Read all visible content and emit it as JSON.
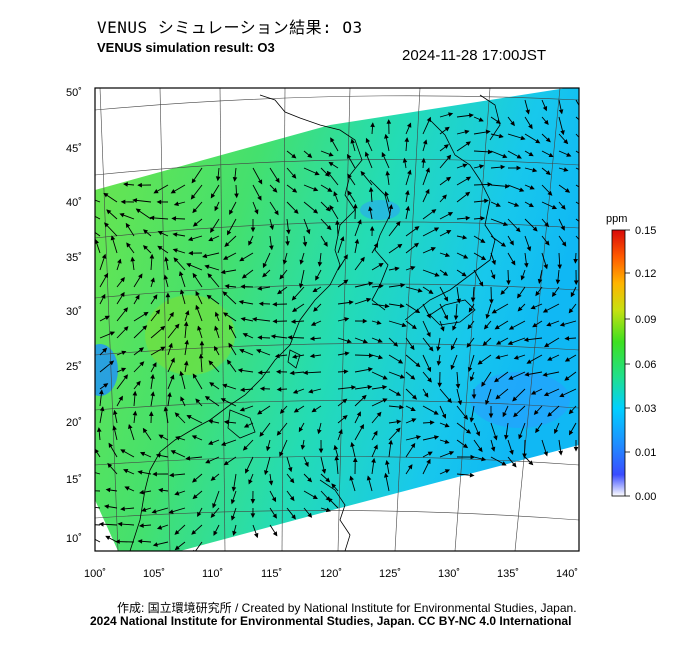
{
  "header": {
    "title_jp": "VENUS シミュレーション結果: O3",
    "title_en": "VENUS simulation result: O3",
    "timestamp": "2024-11-28 17:00JST"
  },
  "footer": {
    "credit": "作成: 国立環境研究所 / Created by National Institute for Environmental Studies, Japan.",
    "copyright": "2024 National Institute for Environmental Studies, Japan. CC BY-NC 4.0 International"
  },
  "map": {
    "lon_ticks": [
      "100˚",
      "105˚",
      "110˚",
      "115˚",
      "120˚",
      "125˚",
      "130˚",
      "135˚",
      "140˚"
    ],
    "lat_ticks": [
      "50˚",
      "45˚",
      "40˚",
      "35˚",
      "30˚",
      "25˚",
      "20˚",
      "15˚",
      "10˚"
    ]
  },
  "colorbar": {
    "unit": "ppm",
    "labels": [
      "0.15",
      "0.12",
      "0.09",
      "0.06",
      "0.03",
      "0.01",
      "0.00"
    ],
    "colors": [
      "#ffffff",
      "#1e5bff",
      "#00c8ff",
      "#22e06a",
      "#7ae01a",
      "#ffe000",
      "#ff7800",
      "#e01414"
    ]
  }
}
